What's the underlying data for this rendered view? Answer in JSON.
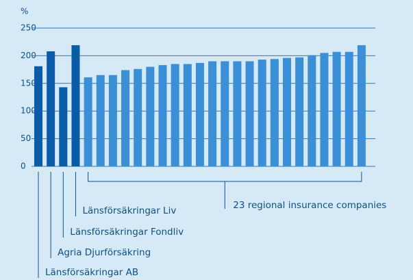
{
  "chart_data": {
    "type": "bar",
    "y_unit": "%",
    "categories": [
      "Länsförsäkringar AB",
      "Agria Djurförsäkring",
      "Länsförsäkringar Fondliv",
      "Länsförsäkringar Liv",
      null,
      null,
      null,
      null,
      null,
      null,
      null,
      null,
      null,
      null,
      null,
      null,
      null,
      null,
      null,
      null,
      null,
      null,
      null,
      null,
      null,
      null,
      null
    ],
    "values": [
      181,
      208,
      143,
      219,
      161,
      165,
      165,
      174,
      176,
      180,
      183,
      185,
      185,
      187,
      190,
      190,
      190,
      190,
      193,
      194,
      196,
      197,
      201,
      205,
      207,
      207,
      219
    ],
    "bar_colors": [
      "#0b5ca8",
      "#0b5ca8",
      "#0b5ca8",
      "#0b5ca8",
      "#3a8fd6",
      "#3a8fd6",
      "#3a8fd6",
      "#3a8fd6",
      "#3a8fd6",
      "#3a8fd6",
      "#3a8fd6",
      "#3a8fd6",
      "#3a8fd6",
      "#3a8fd6",
      "#3a8fd6",
      "#3a8fd6",
      "#3a8fd6",
      "#3a8fd6",
      "#3a8fd6",
      "#3a8fd6",
      "#3a8fd6",
      "#3a8fd6",
      "#3a8fd6",
      "#3a8fd6",
      "#3a8fd6",
      "#3a8fd6",
      "#3a8fd6"
    ],
    "group_label": "23 regional insurance companies",
    "ylim": [
      0,
      250
    ],
    "yticks": [
      0,
      50,
      100,
      150,
      200,
      250
    ],
    "grid": true
  }
}
